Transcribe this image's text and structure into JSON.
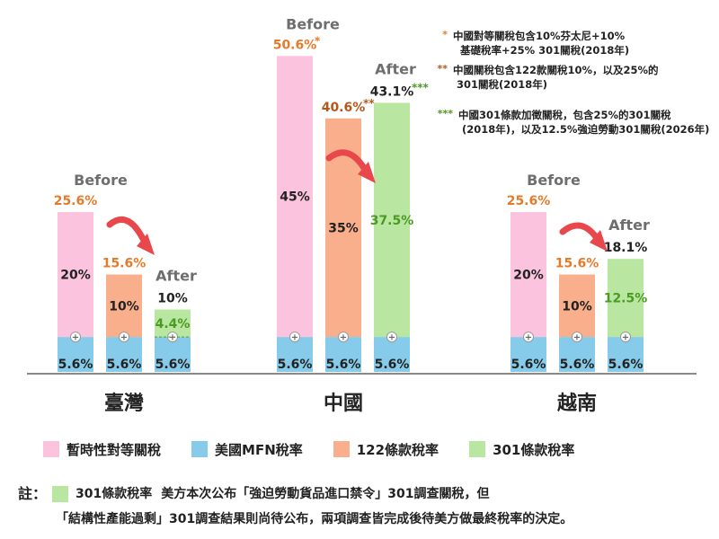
{
  "colors": {
    "pink": "#fbc3de",
    "blue": "#86cbea",
    "orange": "#f9ae8c",
    "green": "#b9e6a0",
    "label_orange": "#e57a29",
    "label_brown": "#b5561b",
    "label_green": "#4a9a24",
    "label_before": "#6e6e6e",
    "arrow": "#e8474c"
  },
  "chart_data": {
    "type": "bar",
    "categories": [
      "臺灣",
      "中國",
      "越南"
    ],
    "countries": [
      {
        "name": "臺灣",
        "before_label": "Before",
        "after_label": "After",
        "bars": [
          {
            "type": "pink",
            "base": 5.6,
            "top": 20,
            "total": 25.6,
            "base_label": "5.6%",
            "top_label": "20%",
            "total_label": "25.6%",
            "marker": ""
          },
          {
            "type": "orange",
            "base": 5.6,
            "top": 10,
            "total": 15.6,
            "base_label": "5.6%",
            "top_label": "10%",
            "total_label": "15.6%",
            "marker": ""
          },
          {
            "type": "green",
            "base": 5.6,
            "top": 4.4,
            "total": 10,
            "base_label": "5.6%",
            "top_label": "4.4%",
            "total_label": "10%",
            "marker": ""
          }
        ]
      },
      {
        "name": "中國",
        "before_label": "Before",
        "after_label": "After",
        "bars": [
          {
            "type": "pink",
            "base": 5.6,
            "top": 45,
            "total": 50.6,
            "base_label": "5.6%",
            "top_label": "45%",
            "total_label": "50.6%",
            "marker": "*"
          },
          {
            "type": "orange",
            "base": 5.6,
            "top": 35,
            "total": 40.6,
            "base_label": "5.6%",
            "top_label": "35%",
            "total_label": "40.6%",
            "marker": "**"
          },
          {
            "type": "green",
            "base": 5.6,
            "top": 37.5,
            "total": 43.1,
            "base_label": "5.6%",
            "top_label": "37.5%",
            "total_label": "43.1%",
            "marker": "***"
          }
        ]
      },
      {
        "name": "越南",
        "before_label": "Before",
        "after_label": "After",
        "bars": [
          {
            "type": "pink",
            "base": 5.6,
            "top": 20,
            "total": 25.6,
            "base_label": "5.6%",
            "top_label": "20%",
            "total_label": "25.6%",
            "marker": ""
          },
          {
            "type": "orange",
            "base": 5.6,
            "top": 10,
            "total": 15.6,
            "base_label": "5.6%",
            "top_label": "10%",
            "total_label": "15.6%",
            "marker": ""
          },
          {
            "type": "green",
            "base": 5.6,
            "top": 12.5,
            "total": 18.1,
            "base_label": "5.6%",
            "top_label": "12.5%",
            "total_label": "18.1%",
            "marker": ""
          }
        ]
      }
    ],
    "footnotes": [
      {
        "marker": "*",
        "lines": [
          "中國對等關稅包含10%芬太尼+10%",
          "基礎稅率+25% 301關稅(2018年)"
        ]
      },
      {
        "marker": "**",
        "lines": [
          "中國關稅包含122款關稅10%，以及25%的",
          "301關稅(2018年)"
        ]
      },
      {
        "marker": "***",
        "lines": [
          "中國301條款加徵關稅，包含25%的301關稅",
          "(2018年)，以及12.5%強迫勞動301關稅(2026年)"
        ]
      }
    ]
  },
  "legend": [
    {
      "label": "暫時性對等關稅",
      "color": "#fbc3de"
    },
    {
      "label": "美國MFN稅率",
      "color": "#86cbea"
    },
    {
      "label": "122條款稅率",
      "color": "#f9ae8c"
    },
    {
      "label": "301條款稅率",
      "color": "#b9e6a0"
    }
  ],
  "note": {
    "prefix": "註：",
    "label": "301條款稅率",
    "line1": "美方本次公布「強迫勞動貨品進口禁令」301調查關稅，但",
    "line2": "「結構性產能過剩」301調查結果則尚待公布，兩項調查皆完成後待美方做最終稅率的決定。"
  }
}
